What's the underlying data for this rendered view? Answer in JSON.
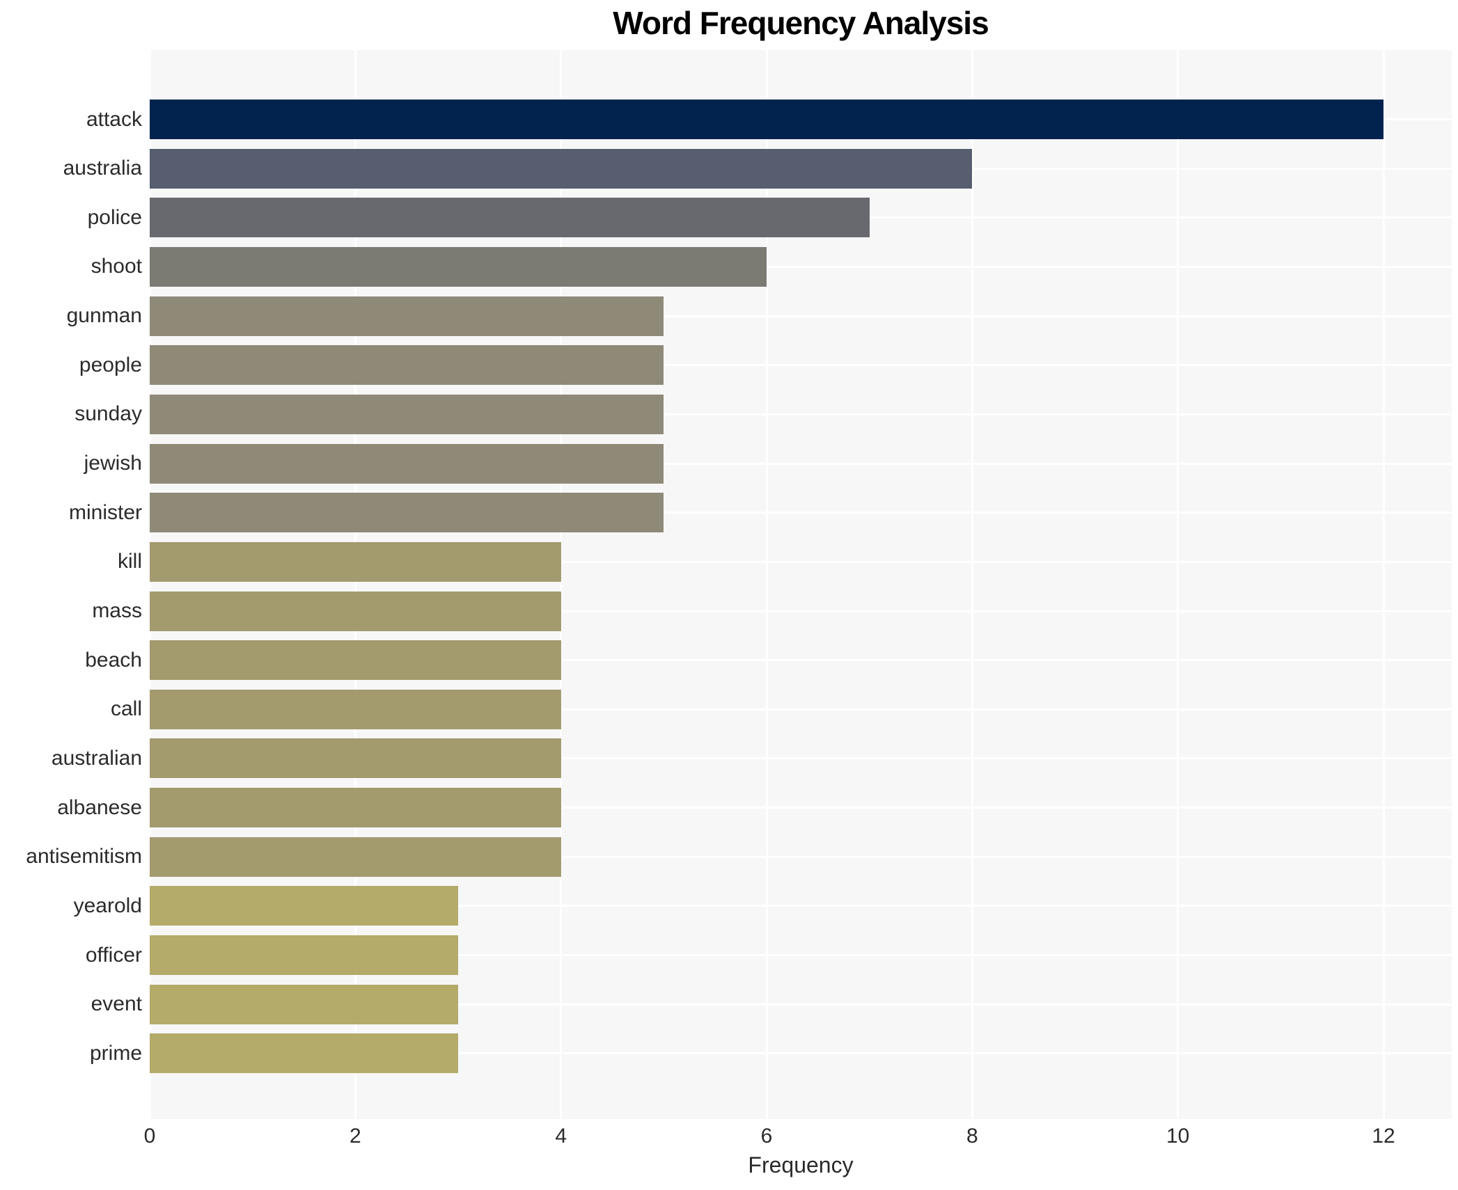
{
  "chart_data": {
    "type": "bar",
    "orientation": "horizontal",
    "title": "Word Frequency Analysis",
    "xlabel": "Frequency",
    "ylabel": "",
    "xlim": [
      0,
      12.66
    ],
    "xticks": [
      0,
      2,
      4,
      6,
      8,
      10,
      12
    ],
    "grid": true,
    "plot_background": "#f7f7f7",
    "gridline_color": "#ffffff",
    "categories": [
      "attack",
      "australia",
      "police",
      "shoot",
      "gunman",
      "people",
      "sunday",
      "jewish",
      "minister",
      "kill",
      "mass",
      "beach",
      "call",
      "australian",
      "albanese",
      "antisemitism",
      "yearold",
      "officer",
      "event",
      "prime"
    ],
    "values": [
      12,
      8,
      7,
      6,
      5,
      5,
      5,
      5,
      5,
      4,
      4,
      4,
      4,
      4,
      4,
      4,
      3,
      3,
      3,
      3
    ],
    "bar_colors": [
      "#02234e",
      "#565e70",
      "#67696f",
      "#7b7a73",
      "#8f8a78",
      "#8f8a78",
      "#8f8a78",
      "#8f8a78",
      "#8f8a78",
      "#a39a6e",
      "#a39a6e",
      "#a39a6e",
      "#a39a6e",
      "#a39a6e",
      "#a39a6e",
      "#a39a6e",
      "#b4aa6a",
      "#b4aa6a",
      "#b4aa6a",
      "#b4aa6a"
    ]
  }
}
